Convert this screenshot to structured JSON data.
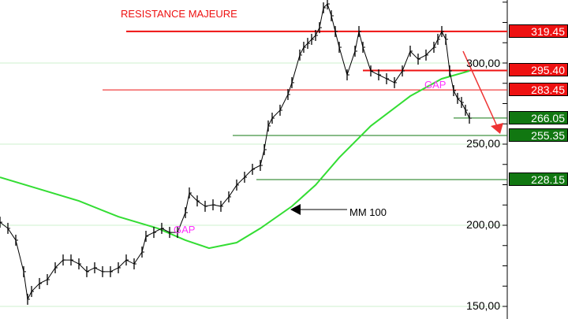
{
  "chart_data": {
    "type": "ohlc-line",
    "xlabel": "",
    "ylabel": "",
    "ylim": [
      148,
      340
    ],
    "y_ticks": [
      "300,00",
      "250,00",
      "200,00",
      "150,00"
    ],
    "y_tick_values": [
      300,
      250,
      200,
      150
    ],
    "grid": true,
    "price_closes": [
      [
        0,
        201.9
      ],
      [
        2,
        198.1
      ],
      [
        4,
        190.8
      ],
      [
        6,
        171.4
      ],
      [
        7,
        154.4
      ],
      [
        8,
        159.2
      ],
      [
        10,
        164.1
      ],
      [
        12,
        166.5
      ],
      [
        14,
        173.8
      ],
      [
        16,
        178.6
      ],
      [
        18,
        178.6
      ],
      [
        20,
        176.2
      ],
      [
        22,
        171.4
      ],
      [
        24,
        173.8
      ],
      [
        26,
        171.4
      ],
      [
        28,
        171.4
      ],
      [
        30,
        173.8
      ],
      [
        32,
        178.6
      ],
      [
        34,
        176.2
      ],
      [
        36,
        183.5
      ],
      [
        37,
        193.2
      ],
      [
        39,
        195.6
      ],
      [
        41,
        198.1
      ],
      [
        43,
        195.6
      ],
      [
        45,
        195.6
      ],
      [
        47,
        207.8
      ],
      [
        48,
        219.9
      ],
      [
        50,
        215.0
      ],
      [
        52,
        211.7
      ],
      [
        54,
        212.6
      ],
      [
        56,
        211.7
      ],
      [
        58,
        217.5
      ],
      [
        60,
        224.8
      ],
      [
        62,
        229.6
      ],
      [
        64,
        234.5
      ],
      [
        66,
        236.9
      ],
      [
        67,
        246.6
      ],
      [
        68,
        261.2
      ],
      [
        69,
        266.0
      ],
      [
        71,
        270.9
      ],
      [
        73,
        280.6
      ],
      [
        74,
        287.9
      ],
      [
        76,
        304.9
      ],
      [
        77,
        309.7
      ],
      [
        78,
        312.1
      ],
      [
        79,
        314.6
      ],
      [
        80,
        317.0
      ],
      [
        81,
        321.8
      ],
      [
        82,
        334.0
      ],
      [
        83,
        336.4
      ],
      [
        84,
        329.1
      ],
      [
        85,
        319.4
      ],
      [
        86,
        309.7
      ],
      [
        88,
        292.7
      ],
      [
        90,
        307.3
      ],
      [
        91,
        319.4
      ],
      [
        92,
        309.7
      ],
      [
        94,
        295.1
      ],
      [
        96,
        292.7
      ],
      [
        98,
        290.3
      ],
      [
        100,
        287.9
      ],
      [
        102,
        295.1
      ],
      [
        104,
        307.3
      ],
      [
        106,
        302.4
      ],
      [
        108,
        304.9
      ],
      [
        110,
        309.7
      ],
      [
        111,
        314.6
      ],
      [
        112,
        319.4
      ],
      [
        113,
        314.6
      ],
      [
        114,
        295.1
      ],
      [
        115,
        283.0
      ],
      [
        116,
        278.2
      ],
      [
        117,
        275.7
      ],
      [
        118,
        270.9
      ],
      [
        119,
        266.0
      ]
    ],
    "moving_average": {
      "name": "MM 100",
      "color": "#33dd33",
      "points": [
        [
          0,
          229.6
        ],
        [
          10,
          222.3
        ],
        [
          20,
          215.0
        ],
        [
          30,
          205.3
        ],
        [
          40,
          198.1
        ],
        [
          47,
          190.8
        ],
        [
          53,
          185.9
        ],
        [
          60,
          189.3
        ],
        [
          66,
          198.1
        ],
        [
          74,
          211.7
        ],
        [
          80,
          224.8
        ],
        [
          86,
          241.7
        ],
        [
          94,
          261.2
        ],
        [
          104,
          279.6
        ],
        [
          112,
          290.3
        ],
        [
          119,
          295.1
        ]
      ]
    },
    "levels": [
      {
        "label": "319.45",
        "value": 319.45,
        "color": "#ee1111",
        "from_bar": 32
      },
      {
        "label": "295.40",
        "value": 295.4,
        "color": "#ee1111",
        "from_bar": 92
      },
      {
        "label": "283.45",
        "value": 283.45,
        "color": "#ee1111",
        "from_bar": 26
      },
      {
        "label": "266.05",
        "value": 266.05,
        "color": "#117711",
        "from_bar": 115
      },
      {
        "label": "255.35",
        "value": 255.35,
        "color": "#117711",
        "from_bar": 59
      },
      {
        "label": "228.15",
        "value": 228.15,
        "color": "#117711",
        "from_bar": 65
      }
    ],
    "annotations": {
      "resistance": "RESISTANCE MAJEURE",
      "gap1": "GAP",
      "gap2": "GAP",
      "ma_label": "MM 100"
    }
  }
}
